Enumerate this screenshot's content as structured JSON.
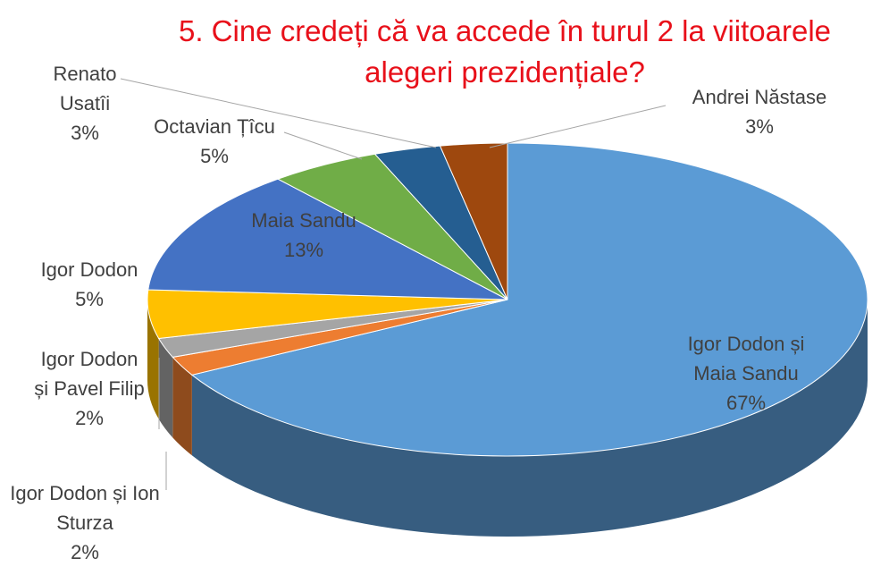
{
  "chart_data": {
    "type": "pie",
    "title": "5. Cine credeți că va accede în turul 2 la viitoarele alegeri prezidențiale?",
    "categories": [
      "Igor Dodon și Maia Sandu",
      "Igor Dodon și Ion Sturza",
      "Igor Dodon și Pavel Filip",
      "Igor Dodon",
      "Maia Sandu",
      "Octavian Țîcu",
      "Renato Usatîi",
      "Andrei Năstase"
    ],
    "values": [
      67,
      2,
      2,
      5,
      13,
      5,
      3,
      3
    ],
    "value_labels": [
      "67%",
      "2%",
      "2%",
      "5%",
      "13%",
      "5%",
      "3%",
      "3%"
    ],
    "colors": [
      "#5b9bd5",
      "#ed7d31",
      "#a5a5a5",
      "#ffc000",
      "#4472c4",
      "#70ad47",
      "#255e91",
      "#9e480e"
    ]
  }
}
